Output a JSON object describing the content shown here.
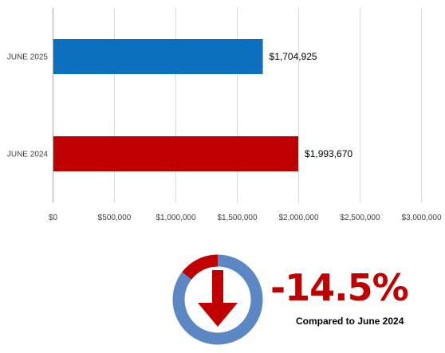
{
  "chart_data": {
    "type": "bar",
    "orientation": "horizontal",
    "categories": [
      "JUNE 2025",
      "JUNE 2024"
    ],
    "values": [
      1704925,
      1993670
    ],
    "value_labels": [
      "$1,704,925",
      "$1,993,670"
    ],
    "bar_colors": [
      "#0c6fc0",
      "#c00000"
    ],
    "xlim": [
      0,
      3000000
    ],
    "x_ticks": [
      0,
      500000,
      1000000,
      1500000,
      2000000,
      2500000,
      3000000
    ],
    "x_tick_labels": [
      "$0",
      "$500,000",
      "$1,000,000",
      "$1,500,000",
      "$2,000,000",
      "$2,500,000",
      "$3,000,000"
    ],
    "grid": true,
    "legend": "none"
  },
  "kpi": {
    "change": "-14.5%",
    "change_fraction": -0.145,
    "caption": "Compared to June 2024",
    "direction_icon": "arrow-down-icon",
    "colors": {
      "change": "#c00000",
      "ring": "#5b87c5",
      "ring_segment": "#c00000",
      "arrow": "#c00000"
    }
  }
}
